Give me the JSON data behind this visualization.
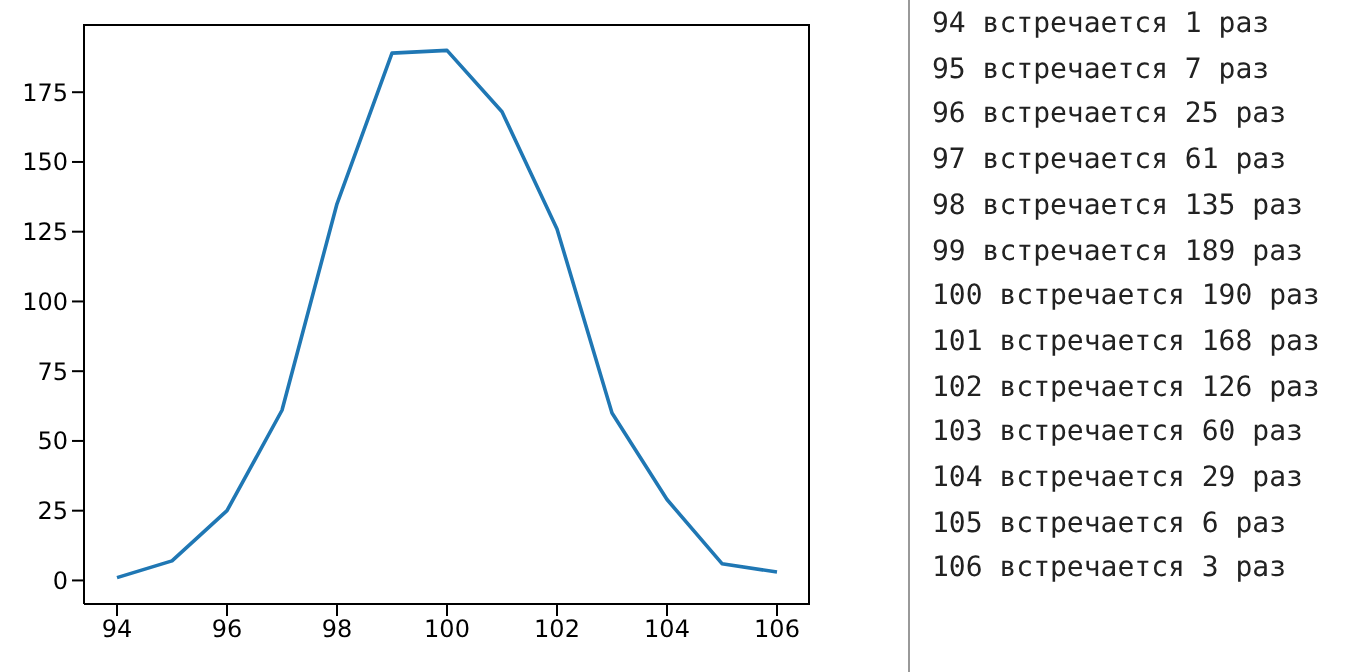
{
  "chart_data": [
    {
      "type": "line",
      "x": [
        94,
        95,
        96,
        97,
        98,
        99,
        100,
        101,
        102,
        103,
        104,
        105,
        106
      ],
      "series": [
        {
          "color": "#1f77b4",
          "values": [
            1,
            7,
            25,
            61,
            135,
            189,
            190,
            168,
            126,
            60,
            29,
            6,
            3
          ]
        }
      ],
      "xlim": [
        93.4,
        106.6
      ],
      "xticks": [
        94,
        96,
        98,
        100,
        102,
        104,
        106
      ],
      "ylim": [
        -8.45,
        199.45
      ],
      "yticks": [
        0,
        25,
        50,
        75,
        100,
        125,
        150,
        175
      ],
      "grid": false,
      "legend": false,
      "marker": "none",
      "line_style": "solid"
    },
    {
      "type": "other",
      "annotations": [
        "94 встречается 1 раз",
        "95 встречается 7 раз",
        "96 встречается 25 раз",
        "97 встречается 61 раз",
        "98 встречается 135 раз",
        "99 встречается 189 раз",
        "100 встречается 190 раз",
        "101 встречается 168 раз",
        "102 встречается 126 раз",
        "103 встречается 60 раз",
        "104 встречается 29 раз",
        "105 встречается 6 раз",
        "106 встречается 3 раз"
      ]
    }
  ]
}
